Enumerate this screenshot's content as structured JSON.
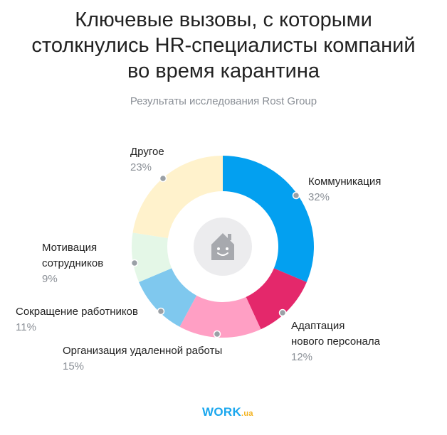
{
  "title_lines": [
    "Ключевые вызовы, с которыми",
    "столкнулись HR-специалисты компаний",
    "во время карантина"
  ],
  "subtitle": "Результаты исследования Rost Group",
  "chart_data": {
    "type": "pie",
    "variant": "donut",
    "title": "Ключевые вызовы, с которыми столкнулись HR-специалисты компаний во время карантина",
    "subtitle": "Результаты исследования Rost Group",
    "categories": [
      "Коммуникация",
      "Адаптация нового персонала",
      "Организация удаленной работы",
      "Сокращение работников",
      "Мотивация сотрудников",
      "Другое"
    ],
    "values": [
      32,
      12,
      15,
      11,
      9,
      23
    ],
    "value_labels": [
      "32%",
      "12%",
      "15%",
      "11%",
      "9%",
      "23%"
    ],
    "label_lines": [
      [
        "Коммуникация"
      ],
      [
        "Адаптация",
        "нового персонала"
      ],
      [
        "Организация удаленной работы"
      ],
      [
        "Сокращение работников"
      ],
      [
        "Мотивация",
        "сотрудников"
      ],
      [
        "Другое"
      ]
    ],
    "colors": [
      "#03a0f0",
      "#e4286b",
      "#ff9fc4",
      "#7fc8ee",
      "#e4f7e7",
      "#fff2cc"
    ],
    "center_icon": "house-smile-icon"
  },
  "logo": {
    "brand": "WORK",
    "domain": ".ua"
  }
}
